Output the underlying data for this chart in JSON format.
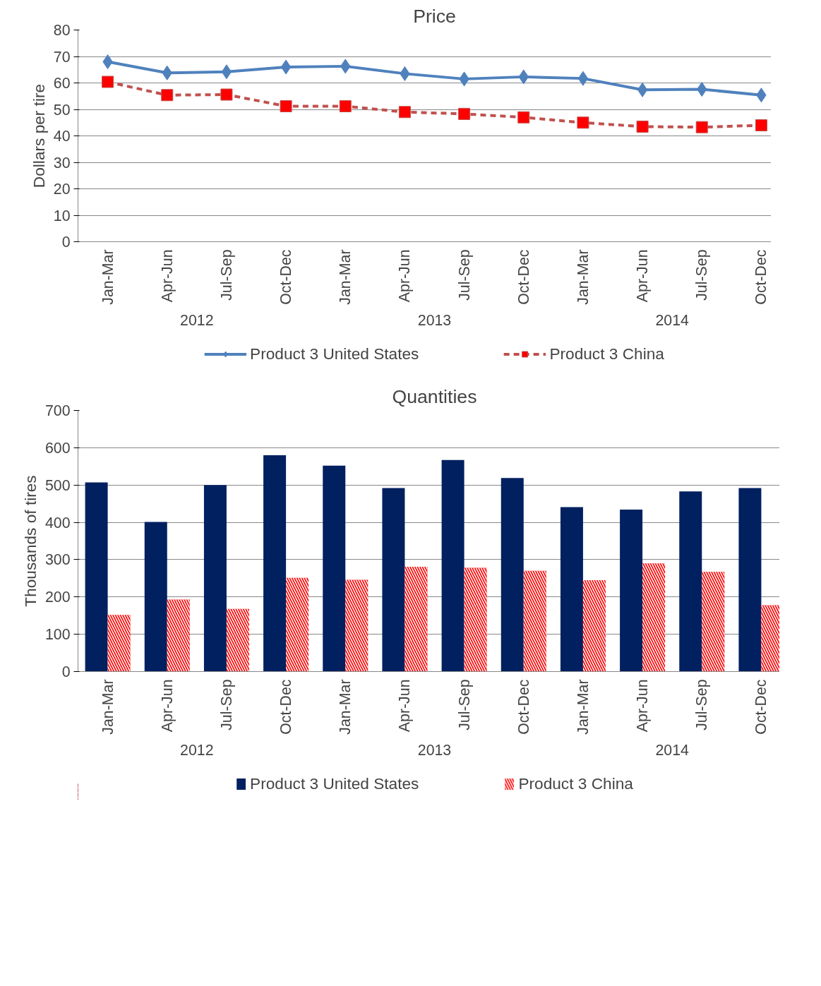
{
  "chart_data": [
    {
      "type": "line",
      "title": "Price",
      "ylabel": "Dollars per tire",
      "categories": [
        "Jan-Mar",
        "Apr-Jun",
        "Jul-Sep",
        "Oct-Dec",
        "Jan-Mar",
        "Apr-Jun",
        "Jul-Sep",
        "Oct-Dec",
        "Jan-Mar",
        "Apr-Jun",
        "Jul-Sep",
        "Oct-Dec"
      ],
      "annotations": [
        "2012",
        "2013",
        "2014"
      ],
      "series": [
        {
          "name": "Product 3 United States",
          "color": "#4f81bd",
          "marker": "diamond",
          "line_style": "solid",
          "values": [
            68,
            63.8,
            64.2,
            66,
            66.3,
            63.5,
            61.5,
            62.3,
            61.7,
            57.4,
            57.6,
            55.4
          ]
        },
        {
          "name": "Product 3 China",
          "color": "#c0504d",
          "marker": "square",
          "line_style": "dashed",
          "values": [
            60.4,
            55.4,
            55.6,
            51.2,
            51.2,
            49,
            48.3,
            47,
            45,
            43.5,
            43.3,
            44
          ]
        }
      ],
      "ylim": [
        0,
        80
      ],
      "yticks": [
        0,
        10,
        20,
        30,
        40,
        50,
        60,
        70,
        80
      ],
      "grid": "y",
      "legend": "bottom"
    },
    {
      "type": "bar",
      "title": "Quantities",
      "ylabel": "Thousands of tires",
      "categories": [
        "Jan-Mar",
        "Apr-Jun",
        "Jul-Sep",
        "Oct-Dec",
        "Jan-Mar",
        "Apr-Jun",
        "Jul-Sep",
        "Oct-Dec",
        "Jan-Mar",
        "Apr-Jun",
        "Jul-Sep",
        "Oct-Dec"
      ],
      "annotations": [
        "2012",
        "2013",
        "2014"
      ],
      "series": [
        {
          "name": "Product 3 United States",
          "color": "#002060",
          "values": [
            507,
            401,
            500,
            580,
            552,
            492,
            567,
            519,
            441,
            434,
            483,
            492
          ]
        },
        {
          "name": "Product 3 China",
          "color": "#ff0000",
          "values": [
            152,
            193,
            168,
            251,
            246,
            281,
            278,
            270,
            245,
            290,
            267,
            178
          ]
        }
      ],
      "ylim": [
        0,
        700
      ],
      "yticks": [
        0,
        100,
        200,
        300,
        400,
        500,
        600,
        700
      ],
      "grid": "y",
      "legend": "bottom"
    }
  ]
}
